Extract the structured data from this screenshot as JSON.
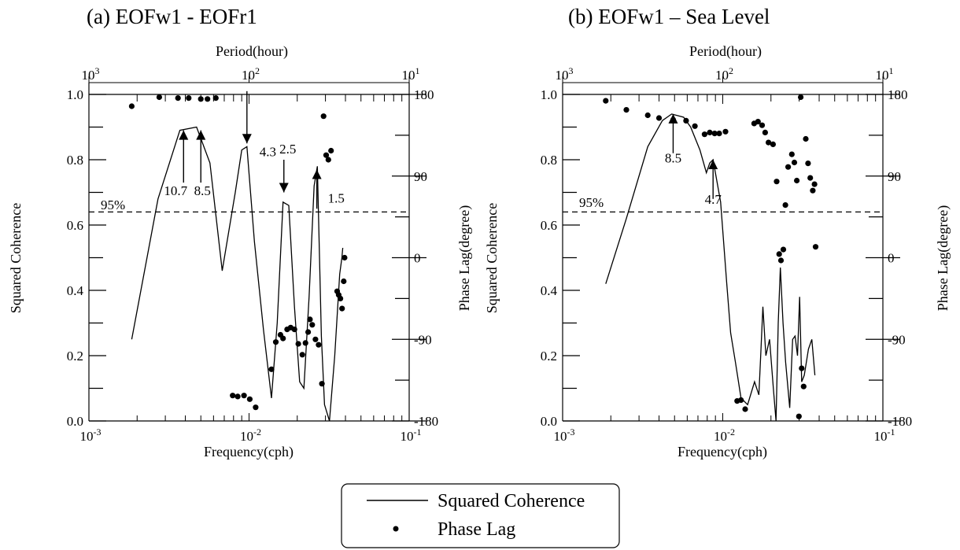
{
  "charts": [
    {
      "title": "(a) EOFw1 - EOFr1",
      "top_axis_label": "Period(hour)",
      "top_ticks": [
        {
          "base": "10",
          "exp": "3",
          "freq": 0.001
        },
        {
          "base": "10",
          "exp": "2",
          "freq": 0.01
        },
        {
          "base": "10",
          "exp": "1",
          "freq": 0.1
        }
      ],
      "bottom_ticks": [
        {
          "base": "10",
          "exp": "-3",
          "freq": 0.001
        },
        {
          "base": "10",
          "exp": "-2",
          "freq": 0.01
        },
        {
          "base": "10",
          "exp": "-1",
          "freq": 0.1
        }
      ],
      "xlabel": "Frequency(cph)",
      "ylabel_left": "Squared Coherence",
      "ylabel_right": "Phase Lag(degree)",
      "left_ticks": [
        "0.0",
        "0.2",
        "0.4",
        "0.6",
        "0.8",
        "1.0"
      ],
      "right_ticks": [
        "-180",
        "-90",
        "0",
        "90",
        "180"
      ],
      "sig_label": "95%",
      "sig_level": 0.64
    },
    {
      "title": "(b) EOFw1 – Sea Level",
      "top_axis_label": "Period(hour)",
      "top_ticks": [
        {
          "base": "10",
          "exp": "3",
          "freq": 0.001
        },
        {
          "base": "10",
          "exp": "2",
          "freq": 0.01
        },
        {
          "base": "10",
          "exp": "1",
          "freq": 0.1
        }
      ],
      "bottom_ticks": [
        {
          "base": "10",
          "exp": "-3",
          "freq": 0.001
        },
        {
          "base": "10",
          "exp": "-2",
          "freq": 0.01
        },
        {
          "base": "10",
          "exp": "-1",
          "freq": 0.1
        }
      ],
      "xlabel": "Frequency(cph)",
      "ylabel_left": "Squared Coherence",
      "ylabel_right": "Phase Lag(degree)",
      "left_ticks": [
        "0.0",
        "0.2",
        "0.4",
        "0.6",
        "0.8",
        "1.0"
      ],
      "right_ticks": [
        "-180",
        "-90",
        "0",
        "90",
        "180"
      ],
      "sig_label": "95%",
      "sig_level": 0.64
    }
  ],
  "legend": {
    "line_label": "Squared Coherence",
    "dot_label": "Phase Lag"
  },
  "chart_data": [
    {
      "type": "line",
      "title": "(a) EOFw1 - EOFr1",
      "xlabel": "Frequency(cph)",
      "x_scale": "log",
      "xlim": [
        0.001,
        0.1
      ],
      "ylim": [
        0,
        1
      ],
      "y2lim": [
        -180,
        180
      ],
      "series": [
        {
          "name": "Squared Coherence",
          "axis": "left",
          "points": [
            [
              0.00185,
              0.25
            ],
            [
              0.0027,
              0.68
            ],
            [
              0.0037,
              0.89
            ],
            [
              0.0047,
              0.9
            ],
            [
              0.0057,
              0.79
            ],
            [
              0.0068,
              0.46
            ],
            [
              0.0082,
              0.7
            ],
            [
              0.009,
              0.83
            ],
            [
              0.0097,
              0.84
            ],
            [
              0.0108,
              0.55
            ],
            [
              0.0123,
              0.28
            ],
            [
              0.0138,
              0.07
            ],
            [
              0.015,
              0.3
            ],
            [
              0.0163,
              0.67
            ],
            [
              0.0177,
              0.66
            ],
            [
              0.0192,
              0.35
            ],
            [
              0.0207,
              0.12
            ],
            [
              0.022,
              0.1
            ],
            [
              0.0237,
              0.38
            ],
            [
              0.0255,
              0.72
            ],
            [
              0.0267,
              0.78
            ],
            [
              0.0283,
              0.26
            ],
            [
              0.0296,
              0.05
            ],
            [
              0.0318,
              0.0
            ],
            [
              0.0343,
              0.2
            ],
            [
              0.0368,
              0.45
            ],
            [
              0.038,
              0.5
            ],
            [
              0.0385,
              0.53
            ]
          ]
        },
        {
          "name": "Phase Lag",
          "axis": "right",
          "points": [
            [
              0.00185,
              167
            ],
            [
              0.00275,
              177
            ],
            [
              0.0036,
              176
            ],
            [
              0.0042,
              176
            ],
            [
              0.005,
              175
            ],
            [
              0.0055,
              175
            ],
            [
              0.0062,
              176
            ],
            [
              0.0079,
              -152
            ],
            [
              0.0085,
              -153
            ],
            [
              0.0093,
              -152
            ],
            [
              0.0101,
              -156
            ],
            [
              0.011,
              -165
            ],
            [
              0.0138,
              -123
            ],
            [
              0.0147,
              -93
            ],
            [
              0.0157,
              -85
            ],
            [
              0.0163,
              -89
            ],
            [
              0.0173,
              -79
            ],
            [
              0.0182,
              -77
            ],
            [
              0.0192,
              -79
            ],
            [
              0.0203,
              -95
            ],
            [
              0.0215,
              -107
            ],
            [
              0.0225,
              -94
            ],
            [
              0.0234,
              -82
            ],
            [
              0.024,
              -68
            ],
            [
              0.0248,
              -74
            ],
            [
              0.026,
              -90
            ],
            [
              0.0272,
              -96
            ],
            [
              0.0285,
              -139
            ],
            [
              0.0292,
              156
            ],
            [
              0.0303,
              113
            ],
            [
              0.0313,
              108
            ],
            [
              0.0325,
              118
            ],
            [
              0.0355,
              -37
            ],
            [
              0.0363,
              -41
            ],
            [
              0.0372,
              -45
            ],
            [
              0.0381,
              -56
            ],
            [
              0.039,
              -26
            ],
            [
              0.0395,
              0
            ]
          ]
        }
      ],
      "annotations": [
        {
          "label": "10.7",
          "x": 0.0039,
          "direction": "up"
        },
        {
          "label": "8.5",
          "x": 0.005,
          "direction": "up"
        },
        {
          "label": "4.3",
          "x": 0.0097,
          "direction": "down"
        },
        {
          "label": "2.5",
          "x": 0.0165,
          "direction": "down"
        },
        {
          "label": "1.5",
          "x": 0.0265,
          "direction": "up"
        }
      ]
    },
    {
      "type": "line",
      "title": "(b) EOFw1 – Sea Level",
      "xlabel": "Frequency(cph)",
      "x_scale": "log",
      "xlim": [
        0.001,
        0.1
      ],
      "ylim": [
        0,
        1
      ],
      "y2lim": [
        -180,
        180
      ],
      "series": [
        {
          "name": "Squared Coherence",
          "axis": "left",
          "points": [
            [
              0.00186,
              0.42
            ],
            [
              0.0025,
              0.62
            ],
            [
              0.0034,
              0.84
            ],
            [
              0.0042,
              0.92
            ],
            [
              0.0048,
              0.94
            ],
            [
              0.0057,
              0.93
            ],
            [
              0.0063,
              0.9
            ],
            [
              0.0072,
              0.83
            ],
            [
              0.0079,
              0.76
            ],
            [
              0.0083,
              0.79
            ],
            [
              0.0087,
              0.8
            ],
            [
              0.0097,
              0.67
            ],
            [
              0.0106,
              0.42
            ],
            [
              0.0112,
              0.27
            ],
            [
              0.012,
              0.18
            ],
            [
              0.013,
              0.07
            ],
            [
              0.0143,
              0.05
            ],
            [
              0.0158,
              0.12
            ],
            [
              0.0168,
              0.08
            ],
            [
              0.0173,
              0.21
            ],
            [
              0.0178,
              0.35
            ],
            [
              0.0186,
              0.2
            ],
            [
              0.0196,
              0.25
            ],
            [
              0.0207,
              0.1
            ],
            [
              0.0215,
              0.0
            ],
            [
              0.0222,
              0.3
            ],
            [
              0.0229,
              0.47
            ],
            [
              0.0238,
              0.3
            ],
            [
              0.0247,
              0.18
            ],
            [
              0.0262,
              0.04
            ],
            [
              0.0273,
              0.25
            ],
            [
              0.0283,
              0.26
            ],
            [
              0.0293,
              0.2
            ],
            [
              0.0302,
              0.38
            ],
            [
              0.0311,
              0.12
            ],
            [
              0.0323,
              0.14
            ],
            [
              0.0343,
              0.22
            ],
            [
              0.036,
              0.25
            ],
            [
              0.0376,
              0.14
            ]
          ]
        },
        {
          "name": "Phase Lag",
          "axis": "right",
          "points": [
            [
              0.00186,
              173
            ],
            [
              0.0025,
              163
            ],
            [
              0.0034,
              157
            ],
            [
              0.004,
              154
            ],
            [
              0.0049,
              152
            ],
            [
              0.0059,
              151
            ],
            [
              0.0067,
              145
            ],
            [
              0.0077,
              136
            ],
            [
              0.0083,
              138
            ],
            [
              0.0089,
              137
            ],
            [
              0.0095,
              137
            ],
            [
              0.0104,
              139
            ],
            [
              0.0123,
              -158
            ],
            [
              0.013,
              -157
            ],
            [
              0.0138,
              -167
            ],
            [
              0.0157,
              148
            ],
            [
              0.0166,
              150
            ],
            [
              0.0176,
              146
            ],
            [
              0.0184,
              138
            ],
            [
              0.0193,
              127
            ],
            [
              0.0206,
              125
            ],
            [
              0.0217,
              84
            ],
            [
              0.0225,
              4
            ],
            [
              0.0231,
              -3
            ],
            [
              0.0239,
              9
            ],
            [
              0.0246,
              58
            ],
            [
              0.0256,
              100
            ],
            [
              0.027,
              114
            ],
            [
              0.028,
              105
            ],
            [
              0.029,
              85
            ],
            [
              0.0299,
              -175
            ],
            [
              0.0307,
              177
            ],
            [
              0.0311,
              -122
            ],
            [
              0.032,
              -142
            ],
            [
              0.033,
              131
            ],
            [
              0.0341,
              104
            ],
            [
              0.0352,
              88
            ],
            [
              0.0365,
              74
            ],
            [
              0.0374,
              81
            ],
            [
              0.038,
              12
            ]
          ]
        }
      ],
      "annotations": [
        {
          "label": "8.5",
          "x": 0.0049,
          "direction": "up"
        },
        {
          "label": "4.7",
          "x": 0.0087,
          "direction": "up"
        }
      ]
    }
  ]
}
